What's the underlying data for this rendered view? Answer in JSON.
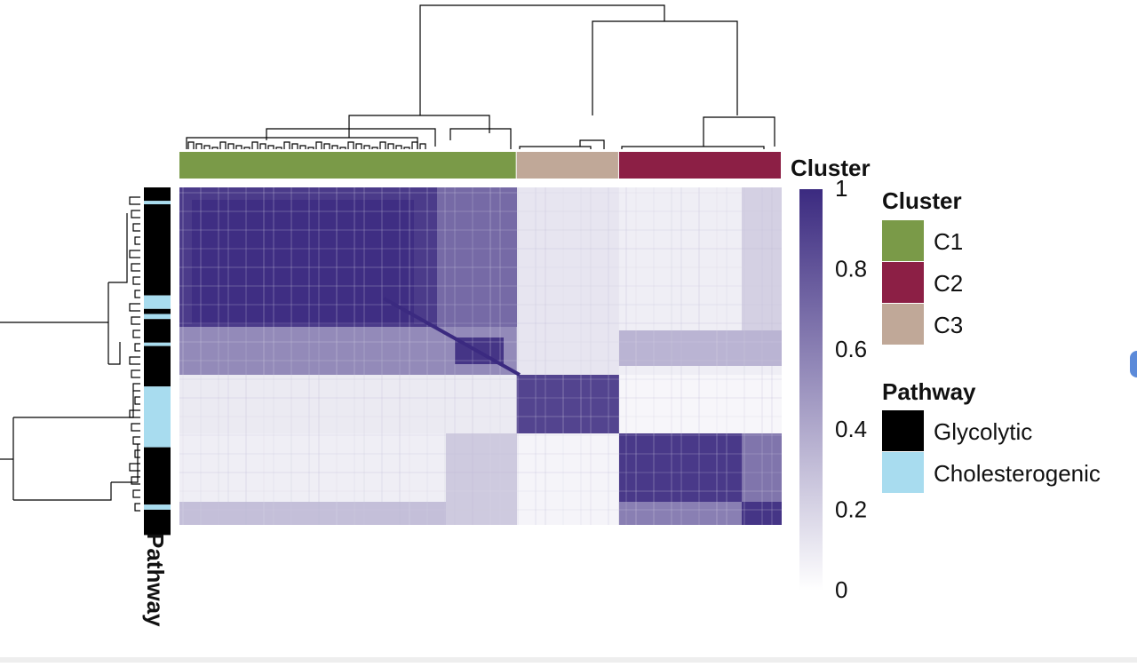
{
  "chart_data": {
    "type": "heatmap",
    "matrix_kind": "consensus",
    "value_range": [
      0,
      1
    ],
    "color_scale": {
      "low": "#ffffff",
      "high": "#3b2a80"
    },
    "colorbar_ticks": [
      {
        "value": 1,
        "label": "1"
      },
      {
        "value": 0.8,
        "label": "0.8"
      },
      {
        "value": 0.6,
        "label": "0.6"
      },
      {
        "value": 0.4,
        "label": "0.4"
      },
      {
        "value": 0.2,
        "label": "0.2"
      },
      {
        "value": 0,
        "label": "0"
      }
    ],
    "column_blocks": [
      {
        "cluster": "C1",
        "fraction": 0.56
      },
      {
        "cluster": "C3",
        "fraction": 0.17
      },
      {
        "cluster": "C2",
        "fraction": 0.27
      }
    ],
    "row_blocks": [
      {
        "pathway": "Glycolytic",
        "fraction": 0.04
      },
      {
        "pathway": "Cholesterogenic",
        "fraction": 0.01
      },
      {
        "pathway": "Glycolytic",
        "fraction": 0.27
      },
      {
        "pathway": "Cholesterogenic",
        "fraction": 0.04
      },
      {
        "pathway": "Glycolytic",
        "fraction": 0.015
      },
      {
        "pathway": "Cholesterogenic",
        "fraction": 0.015
      },
      {
        "pathway": "Glycolytic",
        "fraction": 0.07
      },
      {
        "pathway": "Cholesterogenic",
        "fraction": 0.01
      },
      {
        "pathway": "Glycolytic",
        "fraction": 0.12
      },
      {
        "pathway": "Cholesterogenic",
        "fraction": 0.18
      },
      {
        "pathway": "Glycolytic",
        "fraction": 0.17
      },
      {
        "pathway": "Cholesterogenic",
        "fraction": 0.015
      },
      {
        "pathway": "Glycolytic",
        "fraction": 0.075
      }
    ],
    "block_values": [
      [
        0.92,
        0.08,
        0.12
      ],
      [
        0.08,
        0.93,
        0.05
      ],
      [
        0.1,
        0.04,
        0.88
      ]
    ],
    "cluster_annotation_label": "Cluster",
    "pathway_annotation_label": "Pathway",
    "legends": [
      {
        "title": "Cluster",
        "items": [
          {
            "label": "C1",
            "color": "#7a9a48"
          },
          {
            "label": "C2",
            "color": "#8c1f45"
          },
          {
            "label": "C3",
            "color": "#c0a898"
          }
        ]
      },
      {
        "title": "Pathway",
        "items": [
          {
            "label": "Glycolytic",
            "color": "#000000"
          },
          {
            "label": "Cholesterogenic",
            "color": "#a8dcef"
          }
        ]
      }
    ]
  }
}
